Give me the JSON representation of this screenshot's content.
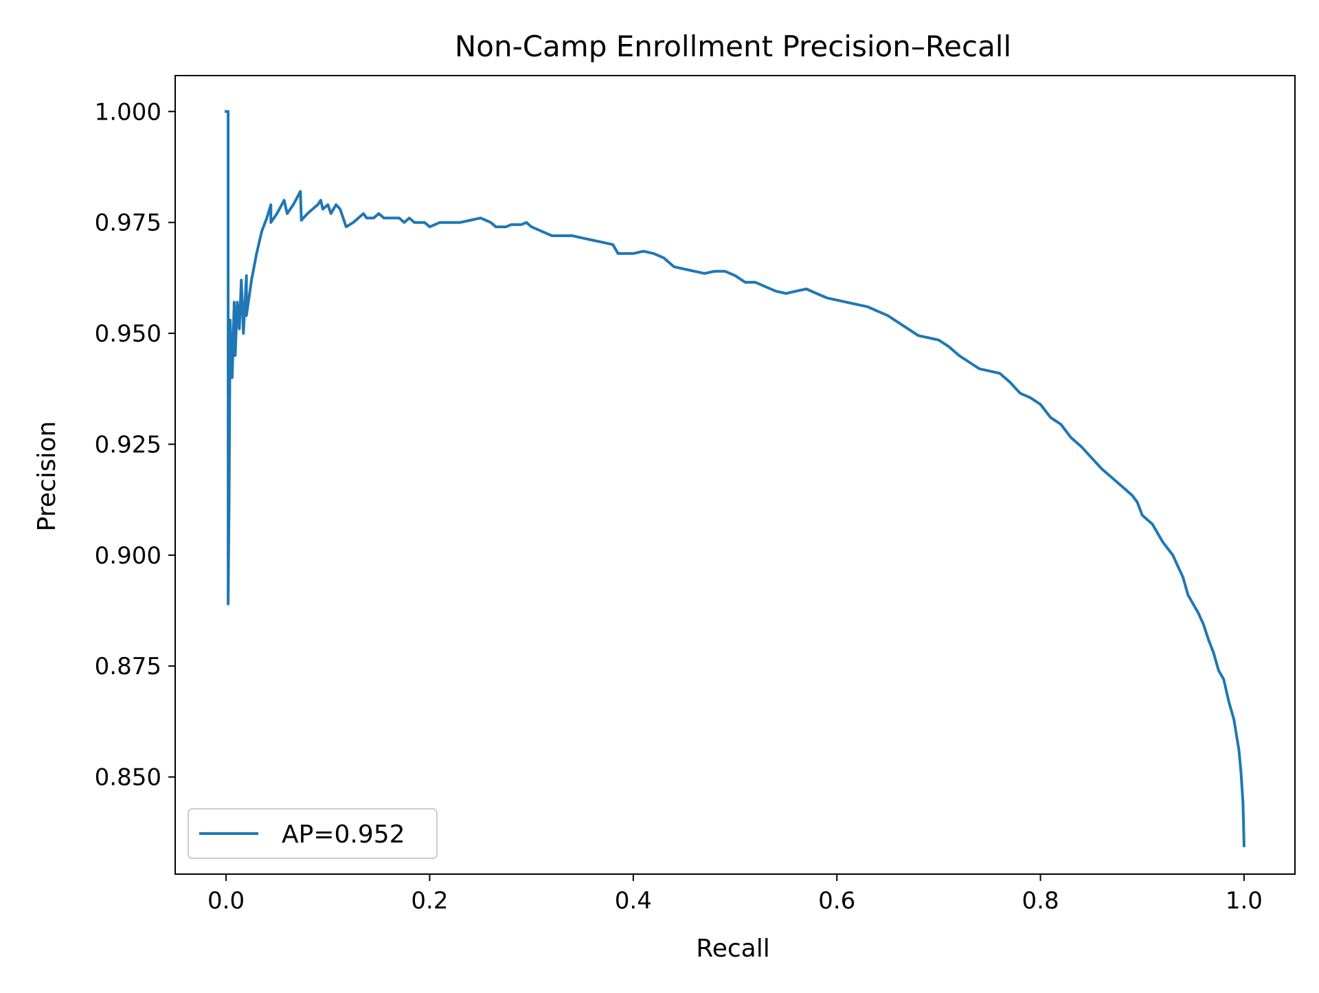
{
  "chart_data": {
    "type": "line",
    "title": "Non-Camp Enrollment Precision–Recall",
    "xlabel": "Recall",
    "ylabel": "Precision",
    "xlim": [
      -0.05,
      1.05
    ],
    "ylim": [
      0.8281,
      1.0081
    ],
    "xticks": [
      0.0,
      0.2,
      0.4,
      0.6,
      0.8,
      1.0
    ],
    "xtick_labels": [
      "0.0",
      "0.2",
      "0.4",
      "0.6",
      "0.8",
      "1.0"
    ],
    "yticks": [
      0.85,
      0.875,
      0.9,
      0.925,
      0.95,
      0.975,
      1.0
    ],
    "ytick_labels": [
      "0.850",
      "0.875",
      "0.900",
      "0.925",
      "0.950",
      "0.975",
      "1.000"
    ],
    "grid": false,
    "legend": {
      "position": "lower-left",
      "entries": [
        "AP=0.952"
      ]
    },
    "colors": {
      "series": "#1f77b4",
      "frame": "#000000",
      "legend_border": "#cccccc"
    },
    "series": [
      {
        "name": "AP=0.952",
        "color": "#1f77b4",
        "points": [
          [
            0.0,
            1.0
          ],
          [
            0.002,
            1.0
          ],
          [
            0.002,
            0.889
          ],
          [
            0.003,
            0.913
          ],
          [
            0.004,
            0.953
          ],
          [
            0.006,
            0.94
          ],
          [
            0.008,
            0.957
          ],
          [
            0.009,
            0.945
          ],
          [
            0.011,
            0.957
          ],
          [
            0.013,
            0.951
          ],
          [
            0.015,
            0.962
          ],
          [
            0.017,
            0.95
          ],
          [
            0.02,
            0.963
          ],
          [
            0.02,
            0.954
          ],
          [
            0.025,
            0.962
          ],
          [
            0.03,
            0.968
          ],
          [
            0.035,
            0.973
          ],
          [
            0.04,
            0.976
          ],
          [
            0.044,
            0.979
          ],
          [
            0.044,
            0.975
          ],
          [
            0.05,
            0.977
          ],
          [
            0.057,
            0.98
          ],
          [
            0.06,
            0.977
          ],
          [
            0.066,
            0.979
          ],
          [
            0.073,
            0.982
          ],
          [
            0.074,
            0.9755
          ],
          [
            0.08,
            0.977
          ],
          [
            0.09,
            0.979
          ],
          [
            0.093,
            0.98
          ],
          [
            0.095,
            0.978
          ],
          [
            0.1,
            0.979
          ],
          [
            0.103,
            0.977
          ],
          [
            0.108,
            0.979
          ],
          [
            0.112,
            0.978
          ],
          [
            0.115,
            0.976
          ],
          [
            0.118,
            0.974
          ],
          [
            0.125,
            0.975
          ],
          [
            0.13,
            0.976
          ],
          [
            0.135,
            0.977
          ],
          [
            0.138,
            0.976
          ],
          [
            0.145,
            0.976
          ],
          [
            0.15,
            0.977
          ],
          [
            0.155,
            0.976
          ],
          [
            0.16,
            0.976
          ],
          [
            0.17,
            0.976
          ],
          [
            0.175,
            0.975
          ],
          [
            0.18,
            0.976
          ],
          [
            0.185,
            0.975
          ],
          [
            0.195,
            0.975
          ],
          [
            0.2,
            0.974
          ],
          [
            0.21,
            0.975
          ],
          [
            0.22,
            0.975
          ],
          [
            0.23,
            0.975
          ],
          [
            0.24,
            0.9755
          ],
          [
            0.25,
            0.976
          ],
          [
            0.255,
            0.9755
          ],
          [
            0.26,
            0.975
          ],
          [
            0.265,
            0.974
          ],
          [
            0.275,
            0.974
          ],
          [
            0.28,
            0.9745
          ],
          [
            0.29,
            0.9745
          ],
          [
            0.295,
            0.975
          ],
          [
            0.3,
            0.974
          ],
          [
            0.31,
            0.973
          ],
          [
            0.32,
            0.972
          ],
          [
            0.33,
            0.972
          ],
          [
            0.34,
            0.972
          ],
          [
            0.35,
            0.9715
          ],
          [
            0.36,
            0.971
          ],
          [
            0.37,
            0.9705
          ],
          [
            0.38,
            0.97
          ],
          [
            0.385,
            0.968
          ],
          [
            0.4,
            0.968
          ],
          [
            0.41,
            0.9685
          ],
          [
            0.42,
            0.968
          ],
          [
            0.43,
            0.967
          ],
          [
            0.435,
            0.966
          ],
          [
            0.44,
            0.965
          ],
          [
            0.45,
            0.9645
          ],
          [
            0.46,
            0.964
          ],
          [
            0.47,
            0.9635
          ],
          [
            0.48,
            0.964
          ],
          [
            0.49,
            0.964
          ],
          [
            0.5,
            0.963
          ],
          [
            0.51,
            0.9615
          ],
          [
            0.52,
            0.9615
          ],
          [
            0.53,
            0.9605
          ],
          [
            0.54,
            0.9595
          ],
          [
            0.55,
            0.959
          ],
          [
            0.56,
            0.9595
          ],
          [
            0.57,
            0.96
          ],
          [
            0.58,
            0.959
          ],
          [
            0.59,
            0.958
          ],
          [
            0.6,
            0.9575
          ],
          [
            0.61,
            0.957
          ],
          [
            0.63,
            0.956
          ],
          [
            0.64,
            0.955
          ],
          [
            0.65,
            0.954
          ],
          [
            0.66,
            0.9525
          ],
          [
            0.67,
            0.951
          ],
          [
            0.68,
            0.9495
          ],
          [
            0.69,
            0.949
          ],
          [
            0.7,
            0.9485
          ],
          [
            0.71,
            0.947
          ],
          [
            0.72,
            0.945
          ],
          [
            0.73,
            0.9435
          ],
          [
            0.74,
            0.942
          ],
          [
            0.75,
            0.9415
          ],
          [
            0.76,
            0.941
          ],
          [
            0.77,
            0.939
          ],
          [
            0.78,
            0.9365
          ],
          [
            0.79,
            0.9355
          ],
          [
            0.8,
            0.934
          ],
          [
            0.81,
            0.931
          ],
          [
            0.82,
            0.9295
          ],
          [
            0.83,
            0.9265
          ],
          [
            0.84,
            0.9245
          ],
          [
            0.85,
            0.922
          ],
          [
            0.86,
            0.9195
          ],
          [
            0.87,
            0.9175
          ],
          [
            0.88,
            0.9155
          ],
          [
            0.885,
            0.9145
          ],
          [
            0.89,
            0.9135
          ],
          [
            0.895,
            0.912
          ],
          [
            0.9,
            0.909
          ],
          [
            0.91,
            0.907
          ],
          [
            0.92,
            0.903
          ],
          [
            0.93,
            0.9
          ],
          [
            0.935,
            0.8975
          ],
          [
            0.94,
            0.895
          ],
          [
            0.945,
            0.891
          ],
          [
            0.95,
            0.889
          ],
          [
            0.955,
            0.887
          ],
          [
            0.96,
            0.8845
          ],
          [
            0.965,
            0.881
          ],
          [
            0.97,
            0.878
          ],
          [
            0.975,
            0.874
          ],
          [
            0.98,
            0.872
          ],
          [
            0.985,
            0.867
          ],
          [
            0.99,
            0.863
          ],
          [
            0.995,
            0.856
          ],
          [
            0.997,
            0.851
          ],
          [
            0.999,
            0.844
          ],
          [
            1.0,
            0.8345
          ]
        ]
      }
    ]
  }
}
